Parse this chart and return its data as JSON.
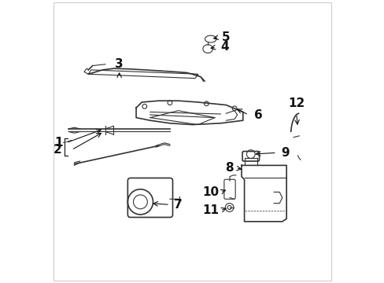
{
  "background_color": "#ffffff",
  "line_color": "#333333",
  "text_color": "#111111",
  "fig_width": 4.89,
  "fig_height": 3.6,
  "dpi": 100,
  "font_size": 11,
  "border_color": "#cccccc"
}
